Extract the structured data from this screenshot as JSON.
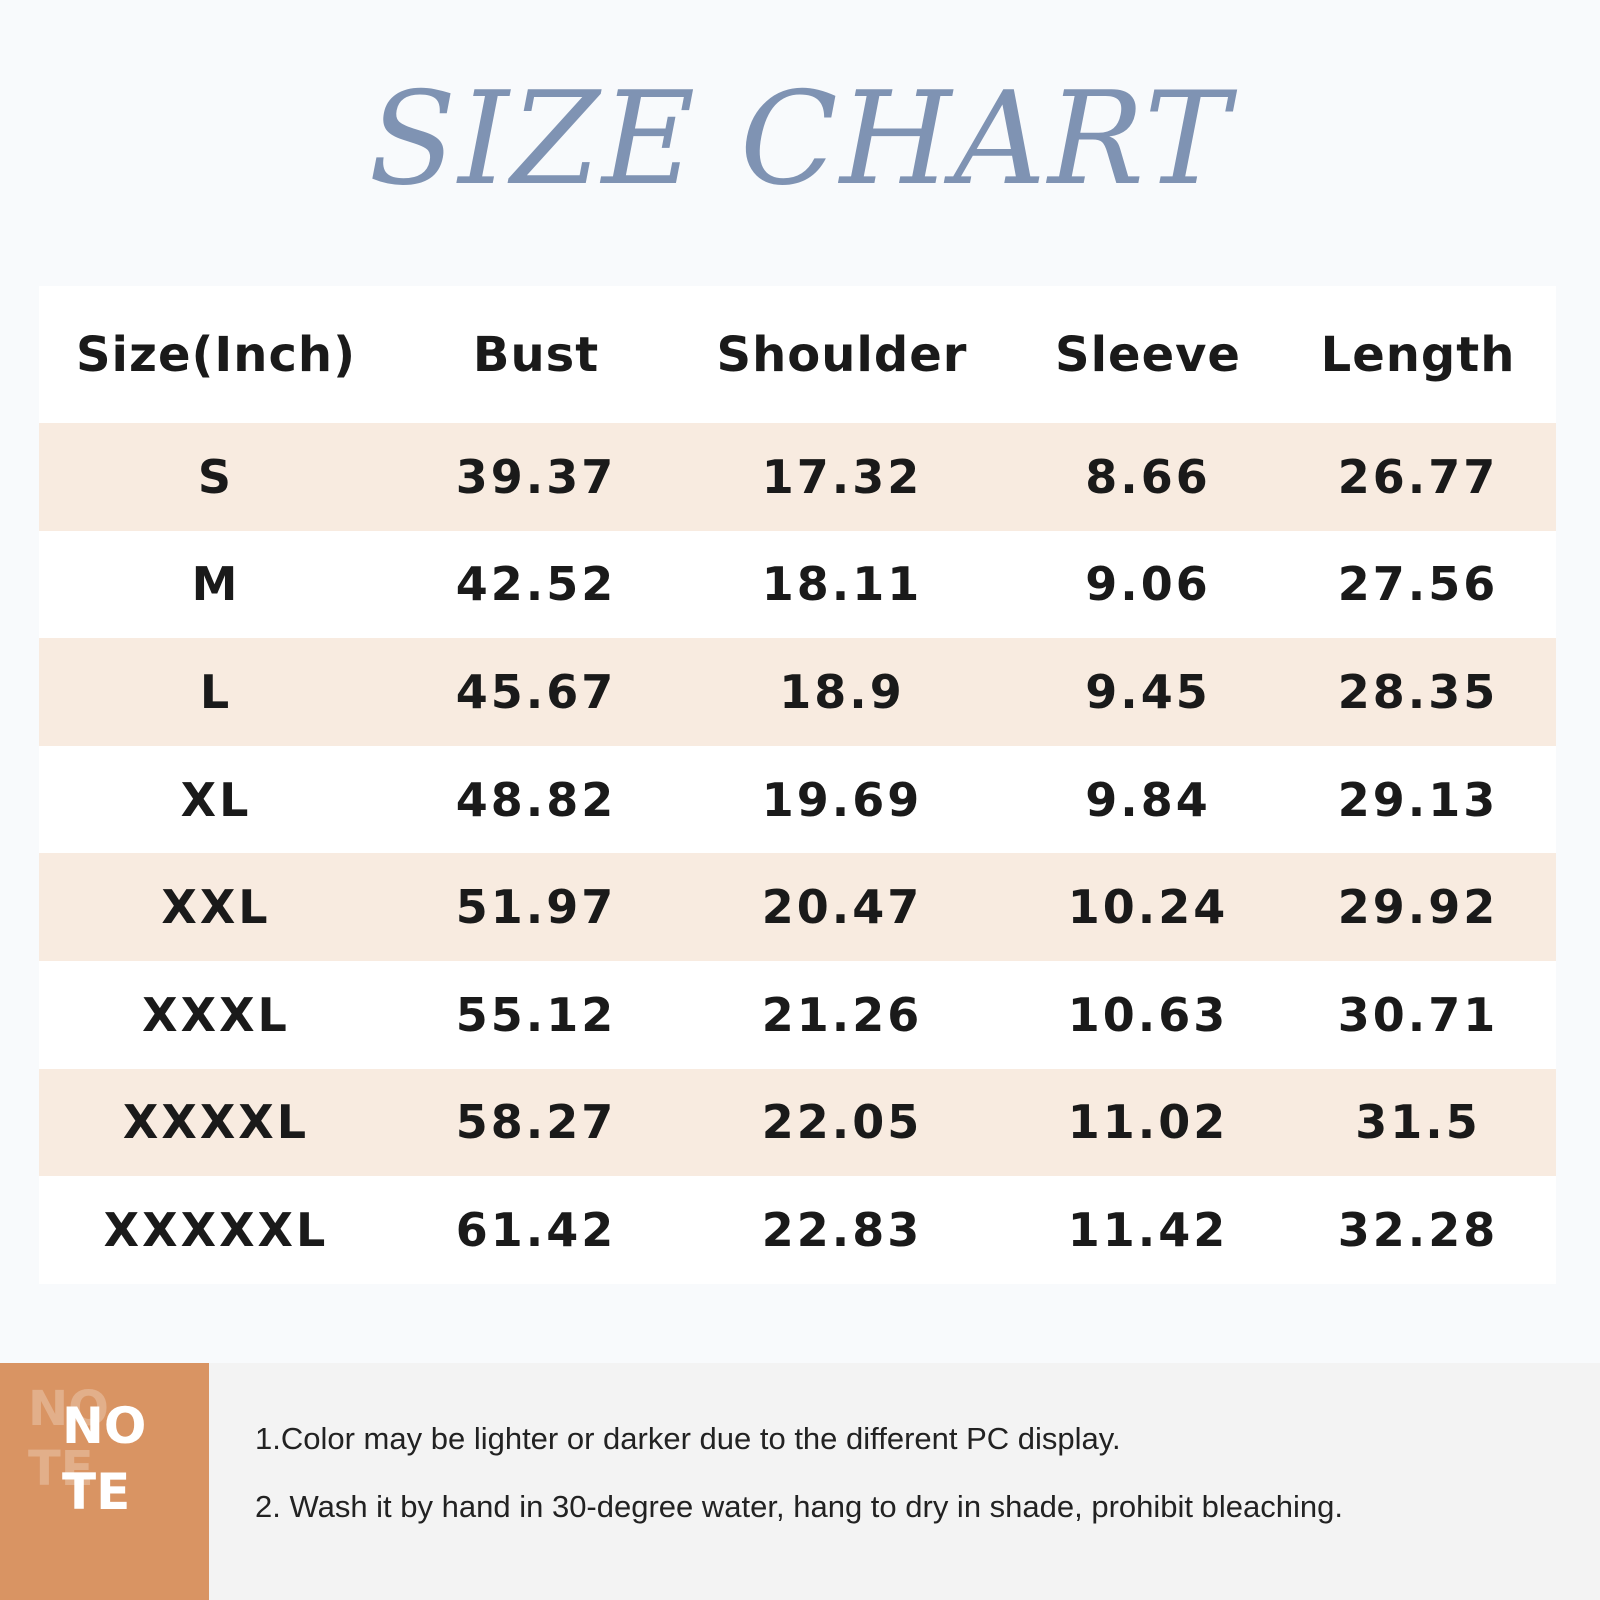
{
  "title": "SIZE CHART",
  "table": {
    "headers": [
      "Size(Inch)",
      "Bust",
      "Shoulder",
      "Sleeve",
      "Length"
    ],
    "rows": [
      [
        "S",
        "39.37",
        "17.32",
        "8.66",
        "26.77"
      ],
      [
        "M",
        "42.52",
        "18.11",
        "9.06",
        "27.56"
      ],
      [
        "L",
        "45.67",
        "18.9",
        "9.45",
        "28.35"
      ],
      [
        "XL",
        "48.82",
        "19.69",
        "9.84",
        "29.13"
      ],
      [
        "XXL",
        "51.97",
        "20.47",
        "10.24",
        "29.92"
      ],
      [
        "XXXL",
        "55.12",
        "21.26",
        "10.63",
        "30.71"
      ],
      [
        "XXXXL",
        "58.27",
        "22.05",
        "11.02",
        "31.5"
      ],
      [
        "XXXXXL",
        "61.42",
        "22.83",
        "11.42",
        "32.28"
      ]
    ],
    "shade_color": "#f8ebe0"
  },
  "note": {
    "badge_line1": "NO",
    "badge_line2": "TE",
    "badge_color": "#d99463",
    "lines": [
      "1.Color may be lighter or darker due to the different PC display.",
      "2. Wash it by hand in 30-degree water, hang to dry in shade, prohibit bleaching."
    ]
  }
}
